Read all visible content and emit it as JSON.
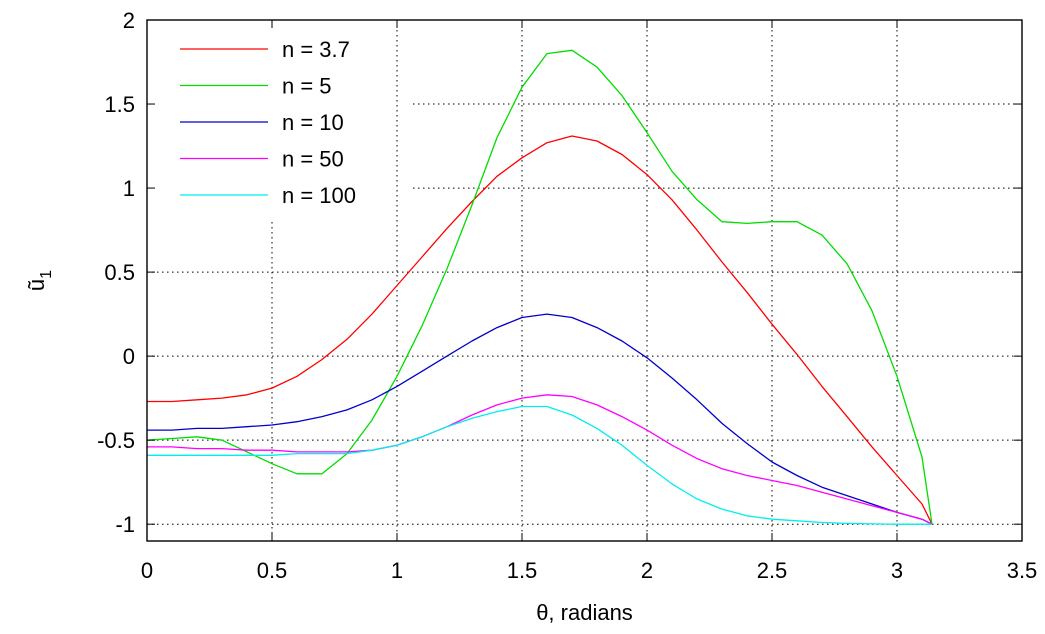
{
  "chart_data": {
    "type": "line",
    "title": "",
    "xlabel": "θ, radians",
    "ylabel": "ũ",
    "ylabel_subscript": "1",
    "xlim": [
      0,
      3.5
    ],
    "ylim": [
      -1.1,
      2
    ],
    "xticks": [
      "0",
      "0.5",
      "1",
      "1.5",
      "2",
      "2.5",
      "3",
      "3.5"
    ],
    "yticks": [
      "-1",
      "-0.5",
      "0",
      "0.5",
      "1",
      "1.5",
      "2"
    ],
    "grid": true,
    "legend_position": "top-left",
    "series": [
      {
        "name": "n = 3.7",
        "color": "#ff0000",
        "x": [
          0,
          0.1,
          0.2,
          0.3,
          0.4,
          0.5,
          0.6,
          0.7,
          0.8,
          0.9,
          1.0,
          1.1,
          1.2,
          1.3,
          1.4,
          1.5,
          1.6,
          1.7,
          1.8,
          1.9,
          2.0,
          2.1,
          2.2,
          2.3,
          2.4,
          2.5,
          2.6,
          2.7,
          2.8,
          2.9,
          3.0,
          3.1,
          3.14
        ],
        "y": [
          -0.27,
          -0.27,
          -0.26,
          -0.25,
          -0.23,
          -0.19,
          -0.12,
          -0.02,
          0.1,
          0.25,
          0.42,
          0.59,
          0.76,
          0.92,
          1.07,
          1.18,
          1.27,
          1.31,
          1.28,
          1.2,
          1.08,
          0.93,
          0.75,
          0.56,
          0.38,
          0.19,
          0.01,
          -0.18,
          -0.36,
          -0.54,
          -0.71,
          -0.88,
          -1.0
        ]
      },
      {
        "name": "n = 5",
        "color": "#00dd00",
        "x": [
          0,
          0.1,
          0.2,
          0.3,
          0.4,
          0.5,
          0.6,
          0.7,
          0.8,
          0.9,
          1.0,
          1.1,
          1.2,
          1.3,
          1.4,
          1.5,
          1.6,
          1.7,
          1.8,
          1.9,
          2.0,
          2.1,
          2.2,
          2.3,
          2.4,
          2.5,
          2.6,
          2.7,
          2.8,
          2.9,
          3.0,
          3.1,
          3.14
        ],
        "y": [
          -0.5,
          -0.49,
          -0.48,
          -0.5,
          -0.57,
          -0.64,
          -0.7,
          -0.7,
          -0.58,
          -0.38,
          -0.12,
          0.18,
          0.52,
          0.9,
          1.3,
          1.6,
          1.8,
          1.82,
          1.72,
          1.55,
          1.33,
          1.1,
          0.93,
          0.8,
          0.79,
          0.8,
          0.8,
          0.72,
          0.55,
          0.27,
          -0.12,
          -0.6,
          -1.0
        ]
      },
      {
        "name": "n = 10",
        "color": "#0000cc",
        "x": [
          0,
          0.1,
          0.2,
          0.3,
          0.4,
          0.5,
          0.6,
          0.7,
          0.8,
          0.9,
          1.0,
          1.1,
          1.2,
          1.3,
          1.4,
          1.5,
          1.6,
          1.7,
          1.8,
          1.9,
          2.0,
          2.1,
          2.2,
          2.3,
          2.4,
          2.5,
          2.6,
          2.7,
          2.8,
          2.9,
          3.0,
          3.1,
          3.14
        ],
        "y": [
          -0.44,
          -0.44,
          -0.43,
          -0.43,
          -0.42,
          -0.41,
          -0.39,
          -0.36,
          -0.32,
          -0.26,
          -0.18,
          -0.09,
          0.0,
          0.09,
          0.17,
          0.23,
          0.25,
          0.23,
          0.17,
          0.09,
          -0.01,
          -0.13,
          -0.26,
          -0.4,
          -0.52,
          -0.63,
          -0.71,
          -0.78,
          -0.83,
          -0.88,
          -0.93,
          -0.97,
          -1.0
        ]
      },
      {
        "name": "n = 50",
        "color": "#ff00ff",
        "x": [
          0,
          0.1,
          0.2,
          0.3,
          0.4,
          0.5,
          0.6,
          0.7,
          0.8,
          0.9,
          1.0,
          1.1,
          1.2,
          1.3,
          1.4,
          1.5,
          1.6,
          1.7,
          1.8,
          1.9,
          2.0,
          2.1,
          2.2,
          2.3,
          2.4,
          2.5,
          2.6,
          2.7,
          2.8,
          2.9,
          3.0,
          3.1,
          3.14
        ],
        "y": [
          -0.54,
          -0.54,
          -0.55,
          -0.55,
          -0.56,
          -0.56,
          -0.57,
          -0.57,
          -0.57,
          -0.56,
          -0.53,
          -0.48,
          -0.42,
          -0.35,
          -0.29,
          -0.25,
          -0.23,
          -0.24,
          -0.29,
          -0.36,
          -0.44,
          -0.53,
          -0.61,
          -0.67,
          -0.71,
          -0.74,
          -0.77,
          -0.81,
          -0.85,
          -0.89,
          -0.93,
          -0.97,
          -1.0
        ]
      },
      {
        "name": "n = 100",
        "color": "#00eeee",
        "x": [
          0,
          0.1,
          0.2,
          0.3,
          0.4,
          0.5,
          0.6,
          0.7,
          0.8,
          0.9,
          1.0,
          1.1,
          1.2,
          1.3,
          1.4,
          1.5,
          1.6,
          1.7,
          1.8,
          1.9,
          2.0,
          2.1,
          2.2,
          2.3,
          2.4,
          2.5,
          2.6,
          2.7,
          2.8,
          2.9,
          3.0,
          3.1,
          3.14
        ],
        "y": [
          -0.59,
          -0.59,
          -0.59,
          -0.59,
          -0.59,
          -0.59,
          -0.58,
          -0.58,
          -0.58,
          -0.56,
          -0.53,
          -0.48,
          -0.42,
          -0.37,
          -0.33,
          -0.3,
          -0.3,
          -0.35,
          -0.43,
          -0.53,
          -0.65,
          -0.76,
          -0.85,
          -0.91,
          -0.95,
          -0.97,
          -0.98,
          -0.99,
          -0.995,
          -0.998,
          -1.0,
          -1.0,
          -1.0
        ]
      }
    ]
  }
}
